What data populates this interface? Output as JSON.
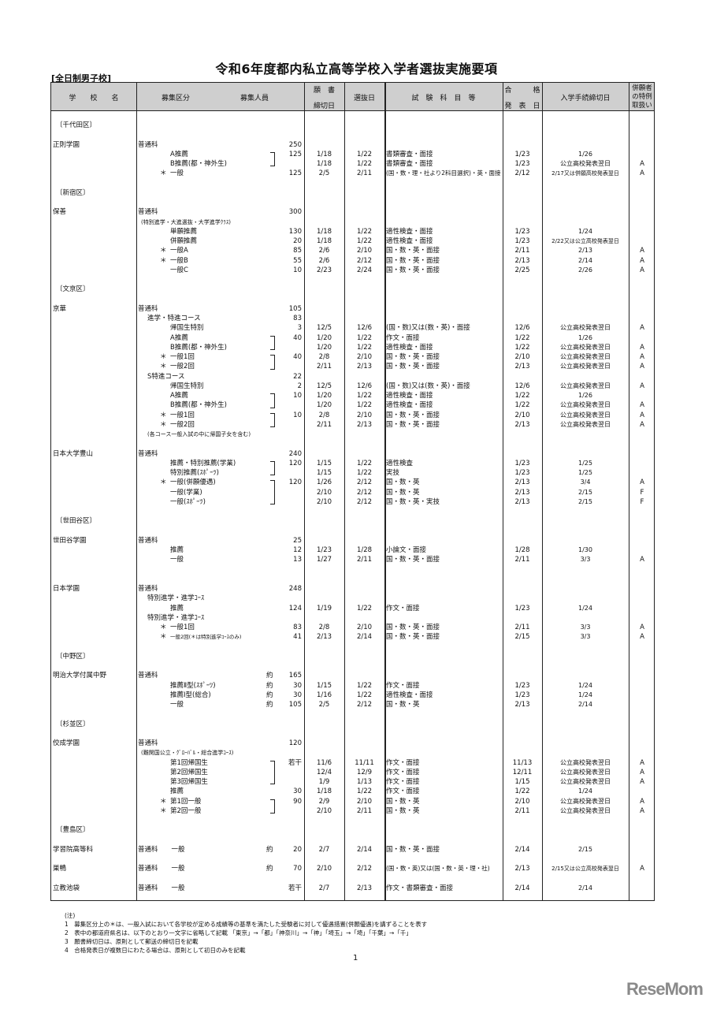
{
  "title": "令和6年度都内私立高等学校入学者選抜実施要項",
  "subtitle": "[全日制男子校]",
  "header": {
    "school": "学　　校　　名",
    "category": "募集区分",
    "capacity": "募集人員",
    "app_top": "願　書",
    "app_bottom": "締切日",
    "selection": "選抜日",
    "subjects": "試　験　科　目　等",
    "pass_top": "合　　　格",
    "pass_bottom": "発　表　日",
    "procedure": "入学手続締切日",
    "special_1": "併願者",
    "special_2": "の特例",
    "special_3": "取扱い"
  },
  "rows": [
    {
      "district": "〔千代田区〕"
    },
    {},
    {
      "school": "正則学園",
      "cat": "普通科",
      "level": 0,
      "cap": "250"
    },
    {
      "cat": "A推薦",
      "level": 2,
      "cap": "125",
      "app": "1/18",
      "sel": "1/22",
      "subj": "書類審査・面接",
      "pass": "1/23",
      "proc": "1/26",
      "br": "top"
    },
    {
      "cat": "B推薦(都・神外生)",
      "level": 2,
      "app": "1/18",
      "sel": "1/22",
      "subj": "書類審査・面接",
      "pass": "1/23",
      "proc": "公立高校発表翌日",
      "sp": "A",
      "br": "bot"
    },
    {
      "cat": "一般",
      "level": 2,
      "star": "＊",
      "cap": "125",
      "app": "2/5",
      "sel": "2/11",
      "subj": "(国・数・理・社より2科目選択)・英・面接",
      "pass": "2/12",
      "proc": "2/17又は併願高校発表翌日",
      "sp": "A"
    },
    {},
    {
      "district": "〔新宿区〕"
    },
    {},
    {
      "school": "保善",
      "cat": "普通科",
      "level": 0,
      "cap": "300"
    },
    {
      "cat": "(特別進学・大進選抜・大学進学ｸﾗｽ)",
      "level": "note"
    },
    {
      "cat": "単願推薦",
      "level": 2,
      "cap": "130",
      "app": "1/18",
      "sel": "1/22",
      "subj": "適性検査・面接",
      "pass": "1/23",
      "proc": "1/24"
    },
    {
      "cat": "併願推薦",
      "level": 2,
      "cap": "20",
      "app": "1/18",
      "sel": "1/22",
      "subj": "適性検査・面接",
      "pass": "1/23",
      "proc": "2/22又は公立高校発表翌日"
    },
    {
      "cat": "一般A",
      "level": 2,
      "star": "＊",
      "cap": "85",
      "app": "2/6",
      "sel": "2/10",
      "subj": "国・数・英・面接",
      "pass": "2/11",
      "proc": "2/13",
      "sp": "A"
    },
    {
      "cat": "一般B",
      "level": 2,
      "star": "＊",
      "cap": "55",
      "app": "2/6",
      "sel": "2/12",
      "subj": "国・数・英・面接",
      "pass": "2/13",
      "proc": "2/14",
      "sp": "A"
    },
    {
      "cat": "一般C",
      "level": 2,
      "cap": "10",
      "app": "2/23",
      "sel": "2/24",
      "subj": "国・数・英・面接",
      "pass": "2/25",
      "proc": "2/26",
      "sp": "A"
    },
    {},
    {
      "district": "〔文京区〕"
    },
    {},
    {
      "school": "京華",
      "cat": "普通科",
      "level": 0,
      "cap": "105"
    },
    {
      "cat": "進学・特進コース",
      "level": 1,
      "cap": "83"
    },
    {
      "cat": "帰国生特別",
      "level": 2,
      "cap": "3",
      "app": "12/5",
      "sel": "12/6",
      "subj": "(国・数)又は(数・英)・面接",
      "pass": "12/6",
      "proc": "公立高校発表翌日",
      "sp": "A"
    },
    {
      "cat": "A推薦",
      "level": 2,
      "cap": "40",
      "app": "1/20",
      "sel": "1/22",
      "subj": "作文・面接",
      "pass": "1/22",
      "proc": "1/26",
      "br": "top"
    },
    {
      "cat": "B推薦(都・神外生)",
      "level": 2,
      "app": "1/20",
      "sel": "1/22",
      "subj": "適性検査・面接",
      "pass": "1/22",
      "proc": "公立高校発表翌日",
      "sp": "A",
      "br": "bot"
    },
    {
      "cat": "一般1回",
      "level": 2,
      "star": "＊",
      "cap": "40",
      "app": "2/8",
      "sel": "2/10",
      "subj": "国・数・英・面接",
      "pass": "2/10",
      "proc": "公立高校発表翌日",
      "sp": "A",
      "br": "top"
    },
    {
      "cat": "一般2回",
      "level": 2,
      "star": "＊",
      "app": "2/11",
      "sel": "2/13",
      "subj": "国・数・英・面接",
      "pass": "2/13",
      "proc": "公立高校発表翌日",
      "sp": "A",
      "br": "bot"
    },
    {
      "cat": "S特進コース",
      "level": 1,
      "cap": "22"
    },
    {
      "cat": "帰国生特別",
      "level": 2,
      "cap": "2",
      "app": "12/5",
      "sel": "12/6",
      "subj": "(国・数)又は(数・英)・面接",
      "pass": "12/6",
      "proc": "公立高校発表翌日",
      "sp": "A"
    },
    {
      "cat": "A推薦",
      "level": 2,
      "cap": "10",
      "app": "1/20",
      "sel": "1/22",
      "subj": "適性検査・面接",
      "pass": "1/22",
      "proc": "1/26",
      "br": "top"
    },
    {
      "cat": "B推薦(都・神外生)",
      "level": 2,
      "app": "1/20",
      "sel": "1/22",
      "subj": "適性検査・面接",
      "pass": "1/22",
      "proc": "公立高校発表翌日",
      "sp": "A",
      "br": "bot"
    },
    {
      "cat": "一般1回",
      "level": 2,
      "star": "＊",
      "cap": "10",
      "app": "2/8",
      "sel": "2/10",
      "subj": "国・数・英・面接",
      "pass": "2/10",
      "proc": "公立高校発表翌日",
      "sp": "A",
      "br": "top"
    },
    {
      "cat": "一般2回",
      "level": 2,
      "star": "＊",
      "app": "2/11",
      "sel": "2/13",
      "subj": "国・数・英・面接",
      "pass": "2/13",
      "proc": "公立高校発表翌日",
      "sp": "A",
      "br": "bot"
    },
    {
      "cat": "(各コース一般入試の中に帰国子女を含む)",
      "level": "note1"
    },
    {},
    {
      "school": "日本大学豊山",
      "cat": "普通科",
      "level": 0,
      "cap": "240"
    },
    {
      "cat": "推薦・特別推薦(学業)",
      "level": 2,
      "cap": "120",
      "app": "1/15",
      "sel": "1/22",
      "subj": "適性検査",
      "pass": "1/23",
      "proc": "1/25",
      "br": "top"
    },
    {
      "cat": "特別推薦(ｽﾎﾟｰﾂ)",
      "level": 2,
      "app": "1/15",
      "sel": "1/22",
      "subj": "実技",
      "pass": "1/23",
      "proc": "1/25",
      "br": "bot"
    },
    {
      "cat": "一般(併願優遇)",
      "level": 2,
      "star": "＊",
      "cap": "120",
      "app": "1/26",
      "sel": "2/12",
      "subj": "国・数・英",
      "pass": "2/13",
      "proc": "3/4",
      "sp": "A",
      "br": "top"
    },
    {
      "cat": "一般(学業)",
      "level": 2,
      "app": "2/10",
      "sel": "2/12",
      "subj": "国・数・英",
      "pass": "2/13",
      "proc": "2/15",
      "sp": "F",
      "br": "mid"
    },
    {
      "cat": "一般(ｽﾎﾟｰﾂ)",
      "level": 2,
      "app": "2/10",
      "sel": "2/12",
      "subj": "国・数・英・実技",
      "pass": "2/13",
      "proc": "2/15",
      "sp": "F",
      "br": "bot"
    },
    {},
    {
      "district": "〔世田谷区〕"
    },
    {},
    {
      "school": "世田谷学園",
      "cat": "普通科",
      "level": 0,
      "cap": "25"
    },
    {
      "cat": "推薦",
      "level": 2,
      "cap": "12",
      "app": "1/23",
      "sel": "1/28",
      "subj": "小論文・面接",
      "pass": "1/28",
      "proc": "1/30"
    },
    {
      "cat": "一般",
      "level": 2,
      "cap": "13",
      "app": "1/27",
      "sel": "2/11",
      "subj": "国・数・英・面接",
      "pass": "2/11",
      "proc": "3/3",
      "sp": "A"
    },
    {},
    {},
    {
      "school": "日本学園",
      "cat": "普通科",
      "level": 0,
      "cap": "248"
    },
    {
      "cat": "特別進学・進学ｺｰｽ",
      "level": 1
    },
    {
      "cat": "推薦",
      "level": 2,
      "cap": "124",
      "app": "1/19",
      "sel": "1/22",
      "subj": "作文・面接",
      "pass": "1/23",
      "proc": "1/24"
    },
    {
      "cat": "特別進学・進学ｺｰｽ",
      "level": 1
    },
    {
      "cat": "一般1回",
      "level": 2,
      "star": "＊",
      "cap": "83",
      "app": "2/8",
      "sel": "2/10",
      "subj": "国・数・英・面接",
      "pass": "2/11",
      "proc": "3/3",
      "sp": "A"
    },
    {
      "cat": "一般2回(＊は特別進学ｺｰｽのみ)",
      "level": 2,
      "small": true,
      "star": "＊",
      "cap": "41",
      "app": "2/13",
      "sel": "2/14",
      "subj": "国・数・英・面接",
      "pass": "2/15",
      "proc": "3/3",
      "sp": "A"
    },
    {},
    {
      "district": "〔中野区〕"
    },
    {},
    {
      "school": "明治大学付属中野",
      "cat": "普通科",
      "level": 0,
      "approx": "約",
      "cap": "165"
    },
    {
      "cat": "推薦Ⅱ型(ｽﾎﾟｰﾂ)",
      "level": 2,
      "approx": "約",
      "cap": "30",
      "app": "1/15",
      "sel": "1/22",
      "subj": "作文・面接",
      "pass": "1/23",
      "proc": "1/24"
    },
    {
      "cat": "推薦Ⅰ型(総合)",
      "level": 2,
      "approx": "約",
      "cap": "30",
      "app": "1/16",
      "sel": "1/22",
      "subj": "適性検査・面接",
      "pass": "1/23",
      "proc": "1/24"
    },
    {
      "cat": "一般",
      "level": 2,
      "approx": "約",
      "cap": "105",
      "app": "2/5",
      "sel": "2/12",
      "subj": "国・数・英",
      "pass": "2/13",
      "proc": "2/14"
    },
    {},
    {
      "district": "〔杉並区〕"
    },
    {},
    {
      "school": "佼成学園",
      "cat": "普通科",
      "level": 0,
      "cap": "120"
    },
    {
      "cat": "(難関国公立・ｸﾞﾛｰﾊﾞﾙ・総合進学ｺｰｽ)",
      "level": "note"
    },
    {
      "cat": "第1回帰国生",
      "level": 2,
      "cap": "若干",
      "app": "11/6",
      "sel": "11/11",
      "subj": "作文・面接",
      "pass": "11/13",
      "proc": "公立高校発表翌日",
      "sp": "A",
      "br": "top"
    },
    {
      "cat": "第2回帰国生",
      "level": 2,
      "app": "12/4",
      "sel": "12/9",
      "subj": "作文・面接",
      "pass": "12/11",
      "proc": "公立高校発表翌日",
      "sp": "A",
      "br": "mid"
    },
    {
      "cat": "第3回帰国生",
      "level": 2,
      "app": "1/9",
      "sel": "1/13",
      "subj": "作文・面接",
      "pass": "1/15",
      "proc": "公立高校発表翌日",
      "sp": "A",
      "br": "bot"
    },
    {
      "cat": "推薦",
      "level": 2,
      "cap": "30",
      "app": "1/18",
      "sel": "1/22",
      "subj": "作文・面接",
      "pass": "1/22",
      "proc": "1/24"
    },
    {
      "cat": "第1回一般",
      "level": 2,
      "star": "＊",
      "cap": "90",
      "app": "2/9",
      "sel": "2/10",
      "subj": "国・数・英",
      "pass": "2/10",
      "proc": "公立高校発表翌日",
      "sp": "A",
      "br": "top"
    },
    {
      "cat": "第2回一般",
      "level": 2,
      "star": "＊",
      "app": "2/10",
      "sel": "2/11",
      "subj": "国・数・英",
      "pass": "2/11",
      "proc": "公立高校発表翌日",
      "sp": "A",
      "br": "bot"
    },
    {},
    {
      "district": "〔豊島区〕"
    },
    {},
    {
      "school": "学習院高等科",
      "cat": "普通科　　一般",
      "level": 0,
      "approx": "約",
      "cap": "20",
      "app": "2/7",
      "sel": "2/14",
      "subj": "国・数・英・面接",
      "pass": "2/14",
      "proc": "2/15"
    },
    {},
    {
      "school": "巣鴨",
      "cat": "普通科　　一般",
      "level": 0,
      "approx": "約",
      "cap": "70",
      "app": "2/10",
      "sel": "2/12",
      "subj": "(国・数・英)又は(国・数・英・理・社)",
      "pass": "2/13",
      "proc": "2/15又は公立高校発表翌日",
      "sp": "A"
    },
    {},
    {
      "school": "立教池袋",
      "cat": "普通科　　一般",
      "level": 0,
      "cap": "若干",
      "app": "2/7",
      "sel": "2/13",
      "subj": "作文・書類審査・面接",
      "pass": "2/14",
      "proc": "2/14"
    }
  ],
  "notes": [
    "(注)",
    "1　募集区分上の＊は、一般入試において各学校が定める成績等の基準を満たした受験者に対して優遇措置(併願優遇)を講ずることを表す",
    "2　表中の都道府県名は、以下のとおり一文字に省略して記載 「東京」→「都」「神奈川」→「神」「埼玉」→「埼」「千葉」→「千」",
    "3　願書締切日は、原則として郵送の締切日を記載",
    "4　合格発表日が複数日にわたる場合は、原則として初日のみを記載"
  ],
  "page_number": "1",
  "logo": "ReseMom"
}
